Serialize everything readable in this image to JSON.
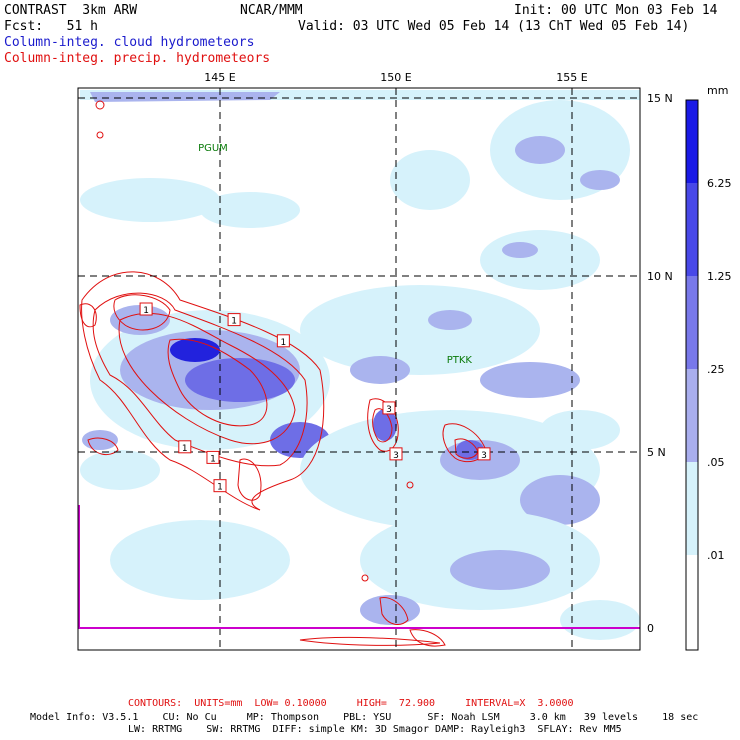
{
  "header": {
    "model": "CONTRAST  3km ARW",
    "org": "NCAR/MMM",
    "init": "Init: 00 UTC Mon 03 Feb 14",
    "fcst": "Fcst:   51 h",
    "valid": "Valid: 03 UTC Wed 05 Feb 14 (13 ChT Wed 05 Feb 14)",
    "field_cloud": "Column-integ. cloud hydrometeors",
    "field_precip": "Column-integ. precip. hydrometeors"
  },
  "map": {
    "lon_labels": [
      "145 E",
      "150 E",
      "155 E"
    ],
    "lat_labels": [
      "15 N",
      "10 N",
      "5 N",
      "0"
    ],
    "stations": [
      {
        "name": "PGUM",
        "lon": 144.8,
        "lat": 13.5
      },
      {
        "name": "PTKK",
        "lon": 151.8,
        "lat": 7.5
      }
    ],
    "contour_labels": [
      {
        "text": "1",
        "lon": 145.4,
        "lat": 8.7
      },
      {
        "text": "1",
        "lon": 146.8,
        "lat": 8.1
      },
      {
        "text": "1",
        "lon": 142.9,
        "lat": 9.0
      },
      {
        "text": "1",
        "lon": 144.0,
        "lat": 5.1
      },
      {
        "text": "1",
        "lon": 144.8,
        "lat": 4.8
      },
      {
        "text": "1",
        "lon": 145.0,
        "lat": 4.0
      },
      {
        "text": "3",
        "lon": 149.8,
        "lat": 6.2
      },
      {
        "text": "3",
        "lon": 150.0,
        "lat": 4.9
      },
      {
        "text": "3",
        "lon": 152.5,
        "lat": 4.9
      }
    ],
    "colors": {
      "cloud_light": "#d6f2fb",
      "cloud_mid": "#aab4ee",
      "cloud_strong": "#6e6ee6",
      "cloud_max": "#2222dd",
      "precip_contour": "#e01010",
      "grid": "#000000",
      "equator_line": "#cc00cc"
    }
  },
  "colorbar": {
    "unit": "mm",
    "labels": [
      "6.25",
      "1.25",
      ".25",
      ".05",
      ".01"
    ],
    "colors": [
      "#1a1ae6",
      "#4848e8",
      "#7878ea",
      "#a9aeee",
      "#d6f2fb",
      "#ffffff"
    ]
  },
  "footer": {
    "contours": "CONTOURS:  UNITS=mm  LOW= 0.10000     HIGH=  72.900     INTERVAL=X  3.0000",
    "line1": "Model Info: V3.5.1    CU: No Cu     MP: Thompson    PBL: YSU      SF: Noah LSM     3.0 km   39 levels    18 sec",
    "line2": "LW: RRTMG    SW: RRTMG  DIFF: simple KM: 3D Smagor DAMP: Rayleigh3  SFLAY: Rev MM5"
  }
}
